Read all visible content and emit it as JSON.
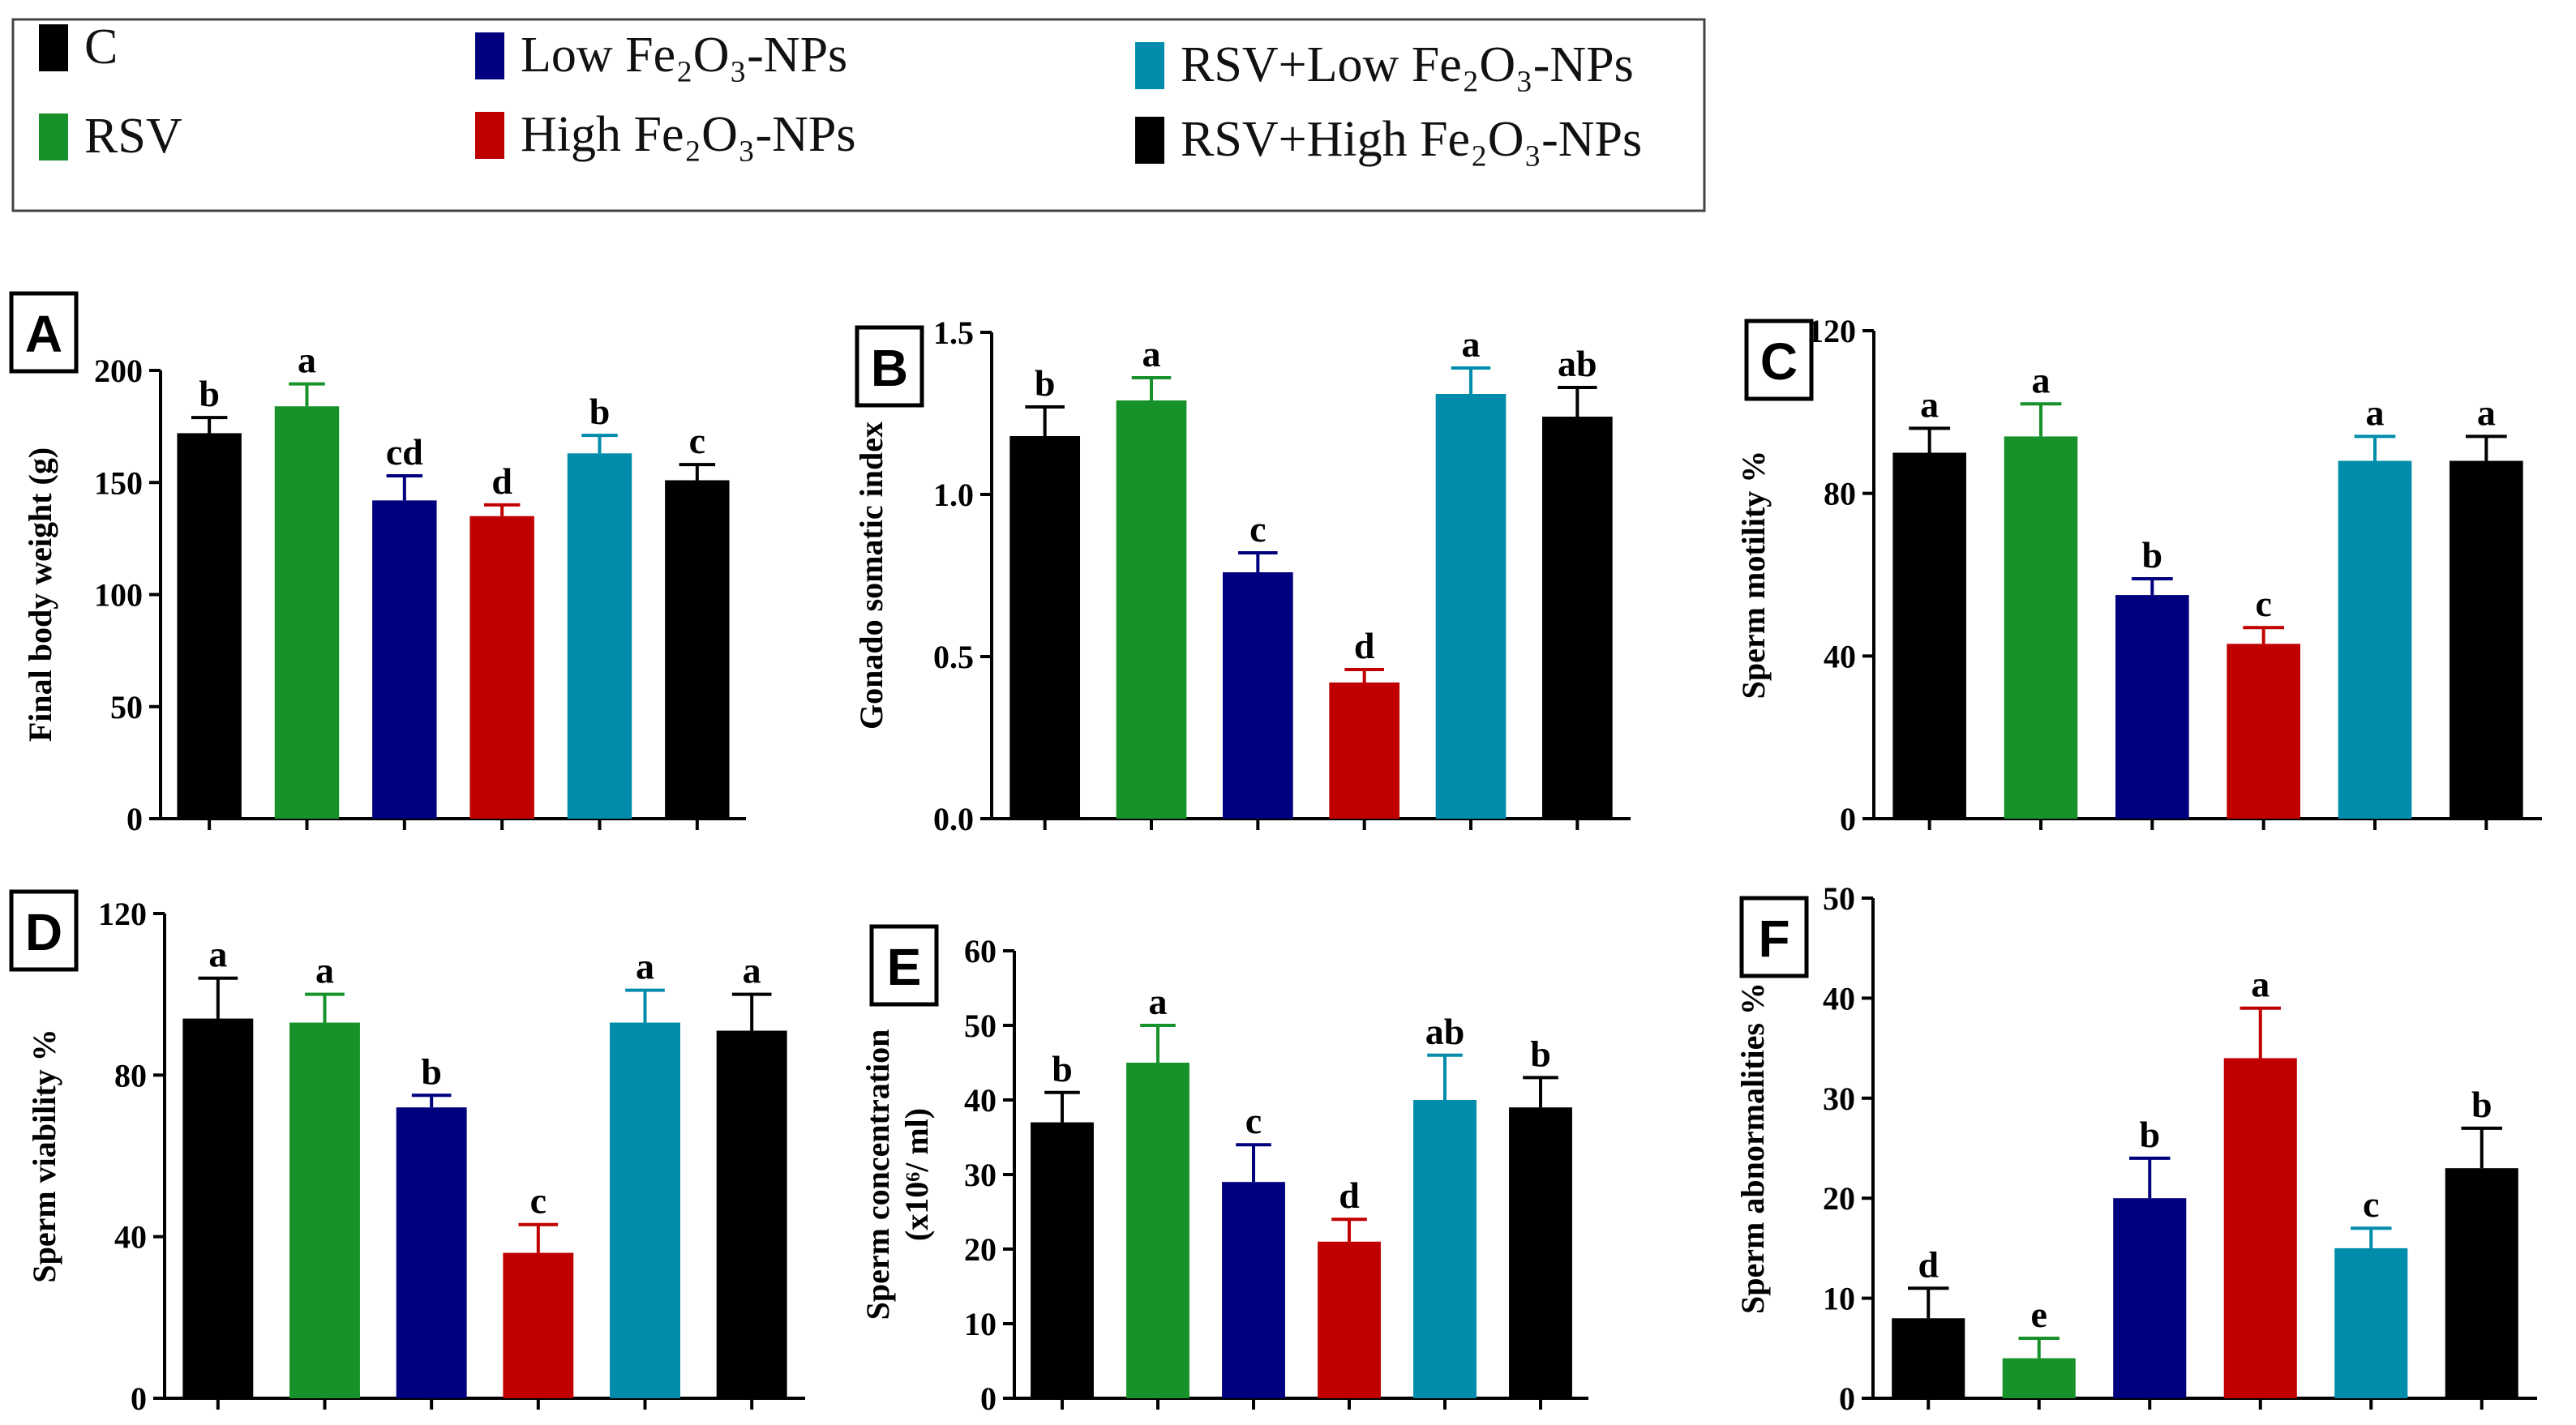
{
  "legend": {
    "items": [
      {
        "label": "C",
        "color": "#000000"
      },
      {
        "label": "RSV",
        "color": "#17922a"
      },
      {
        "label": "Low Fe₂O₃-NPs",
        "color": "#00007f"
      },
      {
        "label": "High Fe₂O₃-NPs",
        "color": "#c00000"
      },
      {
        "label": "RSV+Low Fe₂O₃-NPs",
        "color": "#008caa"
      },
      {
        "label": "RSV+High Fe₂O₃-NPs",
        "color": "#000000"
      }
    ]
  },
  "chart_data": [
    {
      "type": "bar",
      "panel": "A",
      "title": "",
      "xlabel": "",
      "ylabel": "Final body weight (g)",
      "ylim": [
        0,
        200
      ],
      "yticks": [
        "0",
        "50",
        "100",
        "150",
        "200"
      ],
      "categories": [
        "C",
        "RSV",
        "Low Fe₂O₃-NPs",
        "High Fe₂O₃-NPs",
        "RSV+Low Fe₂O₃-NPs",
        "RSV+High Fe₂O₃-NPs"
      ],
      "values": [
        172,
        184,
        142,
        135,
        163,
        151
      ],
      "errors": [
        7,
        10,
        11,
        5,
        8,
        7
      ],
      "significance": [
        "b",
        "a",
        "cd",
        "d",
        "b",
        "c"
      ]
    },
    {
      "type": "bar",
      "panel": "B",
      "title": "",
      "xlabel": "",
      "ylabel": "Gonado somatic index",
      "ylim": [
        0,
        1.5
      ],
      "yticks": [
        "0.0",
        "0.5",
        "1.0",
        "1.5"
      ],
      "categories": [
        "C",
        "RSV",
        "Low Fe₂O₃-NPs",
        "High Fe₂O₃-NPs",
        "RSV+Low Fe₂O₃-NPs",
        "RSV+High Fe₂O₃-NPs"
      ],
      "values": [
        1.18,
        1.29,
        0.76,
        0.42,
        1.31,
        1.24
      ],
      "errors": [
        0.09,
        0.07,
        0.06,
        0.04,
        0.08,
        0.09
      ],
      "significance": [
        "b",
        "a",
        "c",
        "d",
        "a",
        "ab"
      ]
    },
    {
      "type": "bar",
      "panel": "C",
      "title": "",
      "xlabel": "",
      "ylabel": "Sperm motility %",
      "ylim": [
        0,
        120
      ],
      "yticks": [
        "0",
        "40",
        "80",
        "120"
      ],
      "categories": [
        "C",
        "RSV",
        "Low Fe₂O₃-NPs",
        "High Fe₂O₃-NPs",
        "RSV+Low Fe₂O₃-NPs",
        "RSV+High Fe₂O₃-NPs"
      ],
      "values": [
        90,
        94,
        55,
        43,
        88,
        88
      ],
      "errors": [
        6,
        8,
        4,
        4,
        6,
        6
      ],
      "significance": [
        "a",
        "a",
        "b",
        "c",
        "a",
        "a"
      ]
    },
    {
      "type": "bar",
      "panel": "D",
      "title": "",
      "xlabel": "",
      "ylabel": "Sperm viability %",
      "ylim": [
        0,
        120
      ],
      "yticks": [
        "0",
        "40",
        "80",
        "120"
      ],
      "categories": [
        "C",
        "RSV",
        "Low Fe₂O₃-NPs",
        "High Fe₂O₃-NPs",
        "RSV+Low Fe₂O₃-NPs",
        "RSV+High Fe₂O₃-NPs"
      ],
      "values": [
        94,
        93,
        72,
        36,
        93,
        91
      ],
      "errors": [
        10,
        7,
        3,
        7,
        8,
        9
      ],
      "significance": [
        "a",
        "a",
        "b",
        "c",
        "a",
        "a"
      ]
    },
    {
      "type": "bar",
      "panel": "E",
      "title": "",
      "xlabel": "",
      "ylabel": "Sperm concentration (x10⁶/ ml)",
      "ylabel_lines": [
        "Sperm concentration",
        "(x10⁶/ ml)"
      ],
      "ylim": [
        0,
        60
      ],
      "yticks": [
        "0",
        "10",
        "20",
        "30",
        "40",
        "50",
        "60"
      ],
      "categories": [
        "C",
        "RSV",
        "Low Fe₂O₃-NPs",
        "High Fe₂O₃-NPs",
        "RSV+Low Fe₂O₃-NPs",
        "RSV+High Fe₂O₃-NPs"
      ],
      "values": [
        37,
        45,
        29,
        21,
        40,
        39
      ],
      "errors": [
        4,
        5,
        5,
        3,
        6,
        4
      ],
      "significance": [
        "b",
        "a",
        "c",
        "d",
        "ab",
        "b"
      ]
    },
    {
      "type": "bar",
      "panel": "F",
      "title": "",
      "xlabel": "",
      "ylabel": "Sperm abnormalities %",
      "ylim": [
        0,
        50
      ],
      "yticks": [
        "0",
        "10",
        "20",
        "30",
        "40",
        "50"
      ],
      "categories": [
        "C",
        "RSV",
        "Low Fe₂O₃-NPs",
        "High Fe₂O₃-NPs",
        "RSV+Low Fe₂O₃-NPs",
        "RSV+High Fe₂O₃-NPs"
      ],
      "values": [
        8,
        4,
        20,
        34,
        15,
        23
      ],
      "errors": [
        3,
        2,
        4,
        5,
        2,
        4
      ],
      "significance": [
        "d",
        "e",
        "b",
        "a",
        "c",
        "b"
      ]
    }
  ]
}
